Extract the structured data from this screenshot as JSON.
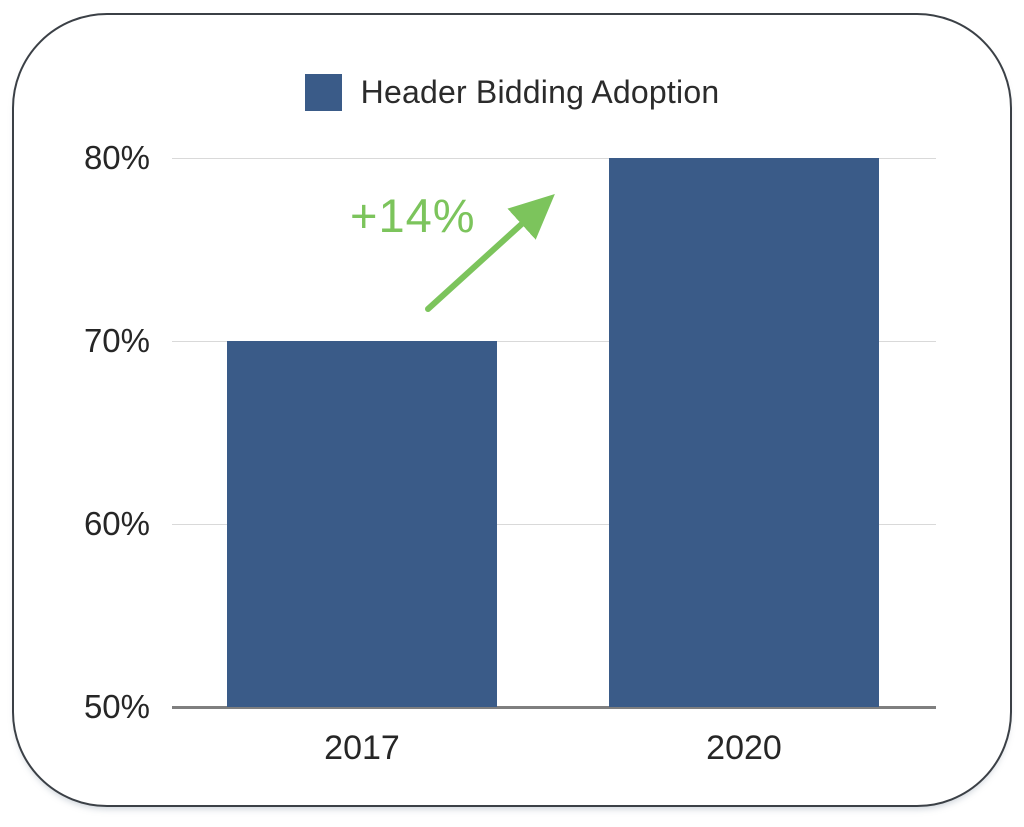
{
  "colors": {
    "bar": "#3a5b88",
    "accent_green": "#7cc45c",
    "grid": "#d9d9d9",
    "axis": "#7f7f7f",
    "text": "#262626",
    "frame": "#3b4046"
  },
  "legend": {
    "label": "Header Bidding Adoption"
  },
  "annotation": {
    "label": "+14%"
  },
  "chart_data": {
    "type": "bar",
    "title": "Header Bidding Adoption",
    "categories": [
      "2017",
      "2020"
    ],
    "values": [
      70,
      80
    ],
    "series": [
      {
        "name": "Header Bidding Adoption",
        "values": [
          70,
          80
        ]
      }
    ],
    "xlabel": "",
    "ylabel": "",
    "ylim": [
      50,
      80
    ],
    "yticks": [
      50,
      60,
      70,
      80
    ],
    "ytick_labels": [
      "50%",
      "60%",
      "70%",
      "80%"
    ],
    "ytick_format": "percent",
    "grid": true,
    "legend_position": "top",
    "annotations": [
      {
        "text": "+14%",
        "type": "arrow",
        "color": "#7cc45c",
        "meaning": "increase from 70% in 2017 to 80% in 2020"
      }
    ]
  }
}
